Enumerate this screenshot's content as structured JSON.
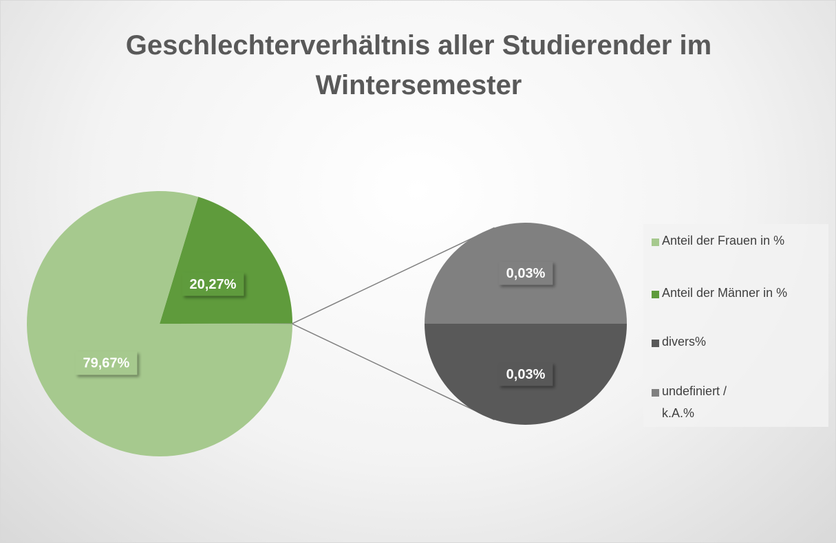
{
  "chart_data": {
    "type": "pie-of-pie",
    "title": "Geschlechterverhältnis aller Studierender im Wintersemester",
    "categories": [
      "Anteil der Frauen in %",
      "Anteil der Männer in %",
      "divers%",
      "undefiniert / k.A.%"
    ],
    "values": [
      79.67,
      20.27,
      0.03,
      0.03
    ],
    "value_labels": [
      "79,67%",
      "20,27%",
      "0,03%",
      "0,03%"
    ],
    "colors": [
      "#a6c98e",
      "#5f9b3c",
      "#595959",
      "#808080"
    ],
    "legend": "right"
  }
}
